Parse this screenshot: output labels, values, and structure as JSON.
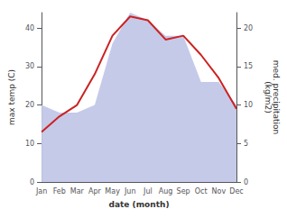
{
  "chart_data": {
    "type": "line",
    "categories": [
      "Jan",
      "Feb",
      "Mar",
      "Apr",
      "May",
      "Jun",
      "Jul",
      "Aug",
      "Sep",
      "Oct",
      "Nov",
      "Dec"
    ],
    "series": [
      {
        "type": "area",
        "axis": "y2",
        "color": "#c5cae9",
        "values": [
          10,
          9,
          9,
          10,
          18,
          22,
          21,
          19,
          19,
          13,
          13,
          10
        ]
      },
      {
        "type": "line",
        "axis": "y",
        "color": "#cc2222",
        "values": [
          13,
          17,
          20,
          28,
          38,
          43,
          42,
          37,
          38,
          33,
          27,
          19
        ]
      }
    ],
    "xlabel": "date (month)",
    "ylabel": "max temp (C)",
    "y2label": "med. precipitation\n(kg/m2)",
    "ylim": [
      0,
      44
    ],
    "yticks": [
      0,
      10,
      20,
      30,
      40
    ],
    "y2lim": [
      0,
      22
    ],
    "y2ticks": [
      0,
      5,
      10,
      15,
      20
    ],
    "grid": false
  }
}
